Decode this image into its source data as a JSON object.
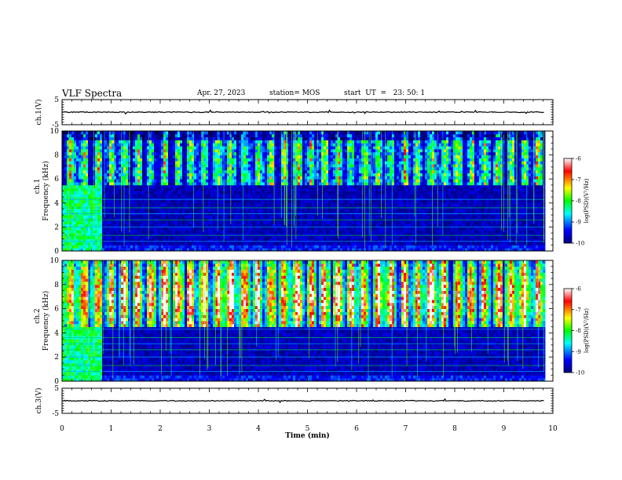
{
  "header": {
    "title": "VLF Spectra",
    "date": "Apr. 27, 2023",
    "station": "station= MOS",
    "start": "start  UT  =   23: 50: 1"
  },
  "chart_data": {
    "type": "heatmap",
    "title": "VLF Spectra",
    "xlabel": "Time (min)",
    "xlim": [
      0,
      10
    ],
    "xticks": [
      "0",
      "1",
      "2",
      "3",
      "4",
      "5",
      "6",
      "7",
      "8",
      "9",
      "10"
    ],
    "panels": [
      {
        "id": "ch1_waveform",
        "ylabel": "ch.1(V)",
        "ylim": [
          -5,
          5
        ],
        "yticks": [
          "5",
          "-5"
        ],
        "type": "line",
        "trace_level": 0,
        "data_end_min": 9.83
      },
      {
        "id": "ch1_spectrogram",
        "ylabel_top": "ch.1",
        "ylabel": "Frequency (kHz)",
        "ylim": [
          0,
          10
        ],
        "yticks": [
          "0",
          "2",
          "4",
          "6",
          "8",
          "10"
        ],
        "type": "heatmap",
        "intense_band_khz": [
          5.5,
          10
        ],
        "low_band_end_khz": 5.5,
        "broadband_until_min": 0.78,
        "data_end_min": 9.83
      },
      {
        "id": "ch2_spectrogram",
        "ylabel_top": "ch.2",
        "ylabel": "Frequency (kHz)",
        "ylim": [
          0,
          10
        ],
        "yticks": [
          "0",
          "2",
          "4",
          "6",
          "8",
          "10"
        ],
        "type": "heatmap",
        "intense_band_khz": [
          4.5,
          10
        ],
        "peak_khz": 7,
        "broadband_until_min": 0.78,
        "data_end_min": 9.83
      },
      {
        "id": "ch3_waveform",
        "ylabel": "ch.3(V)",
        "ylim": [
          -5,
          5
        ],
        "yticks": [
          "5",
          "-5"
        ],
        "type": "line",
        "trace_level": 0,
        "data_end_min": 9.83
      }
    ],
    "colorbar": {
      "label": "log(PSD)(V²/Hz)",
      "ticks": [
        "-6",
        "-7",
        "-8",
        "-9",
        "-10"
      ],
      "range": [
        -10,
        -6
      ],
      "colors": [
        "#000080",
        "#0000ff",
        "#00ffff",
        "#00ff00",
        "#ffff00",
        "#ff0000",
        "#ffffff"
      ]
    }
  }
}
